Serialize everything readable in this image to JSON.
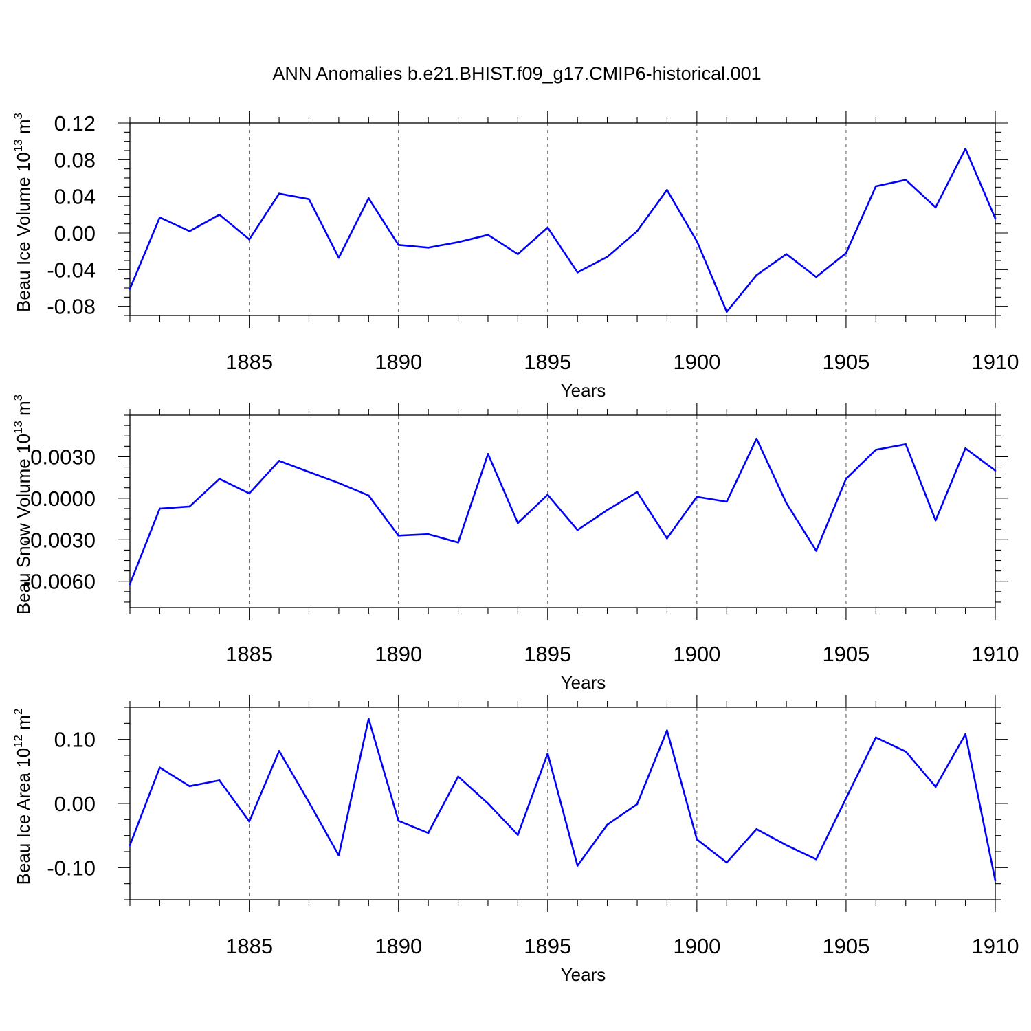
{
  "figure": {
    "title": "ANN Anomalies b.e21.BHIST.f09_g17.CMIP6-historical.001",
    "line_color": "#0000ff"
  },
  "chart_data": [
    {
      "type": "line",
      "id": "ice-volume",
      "ylabel": {
        "text": "Beau Ice Volume 10",
        "exp": "13",
        "unit": " m",
        "unit_exp": "3"
      },
      "xlabel": "Years",
      "xlim": [
        1881,
        1910
      ],
      "ylim": [
        -0.09,
        0.12
      ],
      "x_major_ticks": [
        1885,
        1890,
        1895,
        1900,
        1905,
        1910
      ],
      "x_major_labels": [
        "1885",
        "1890",
        "1895",
        "1900",
        "1905",
        "1910"
      ],
      "y_major_ticks": [
        0.12,
        0.08,
        0.04,
        0.0,
        -0.04,
        -0.08
      ],
      "y_major_labels": [
        "0.12",
        "0.08",
        "0.04",
        "0.00",
        "-0.04",
        "-0.08"
      ],
      "y_minor_step": 0.01,
      "grid": "vertical dashed at major x ticks",
      "series": [
        {
          "name": "Beau Ice Volume",
          "x": [
            1881,
            1882,
            1883,
            1884,
            1885,
            1886,
            1887,
            1888,
            1889,
            1890,
            1891,
            1892,
            1893,
            1894,
            1895,
            1896,
            1897,
            1898,
            1899,
            1900,
            1901,
            1902,
            1903,
            1904,
            1905,
            1906,
            1907,
            1908,
            1909,
            1910
          ],
          "values": [
            -0.061,
            0.017,
            0.002,
            0.02,
            -0.007,
            0.043,
            0.037,
            -0.027,
            0.038,
            -0.013,
            -0.016,
            -0.01,
            -0.002,
            -0.023,
            0.006,
            -0.043,
            -0.026,
            0.002,
            0.047,
            -0.009,
            -0.086,
            -0.046,
            -0.023,
            -0.048,
            -0.022,
            0.051,
            0.058,
            0.028,
            0.092,
            0.016
          ]
        }
      ]
    },
    {
      "type": "line",
      "id": "snow-volume",
      "ylabel": {
        "text": "Beau Snow Volume 10",
        "exp": "13",
        "unit": " m",
        "unit_exp": "3"
      },
      "xlabel": "Years",
      "xlim": [
        1881,
        1910
      ],
      "ylim": [
        -0.0079,
        0.006
      ],
      "x_major_ticks": [
        1885,
        1890,
        1895,
        1900,
        1905,
        1910
      ],
      "x_major_labels": [
        "1885",
        "1890",
        "1895",
        "1900",
        "1905",
        "1910"
      ],
      "y_major_ticks": [
        0.003,
        0.0,
        -0.003,
        -0.006
      ],
      "y_major_labels": [
        "0.0030",
        "0.0000",
        "-0.0030",
        "-0.0060"
      ],
      "y_minor_step": 0.00075,
      "grid": "vertical dashed at major x ticks",
      "series": [
        {
          "name": "Beau Snow Volume",
          "x": [
            1881,
            1882,
            1883,
            1884,
            1885,
            1886,
            1887,
            1888,
            1889,
            1890,
            1891,
            1892,
            1893,
            1894,
            1895,
            1896,
            1897,
            1898,
            1899,
            1900,
            1901,
            1902,
            1903,
            1904,
            1905,
            1906,
            1907,
            1908,
            1909,
            1910
          ],
          "values": [
            -0.0062,
            -0.00075,
            -0.0006,
            0.0014,
            0.00035,
            0.0027,
            0.0019,
            0.0011,
            0.0002,
            -0.0027,
            -0.0026,
            -0.0032,
            0.0032,
            -0.0018,
            0.00025,
            -0.0023,
            -0.00085,
            0.00045,
            -0.0029,
            0.0001,
            -0.00025,
            0.0043,
            -0.00035,
            -0.0038,
            0.0014,
            0.0035,
            0.0039,
            -0.0016,
            0.0036,
            0.002
          ]
        }
      ]
    },
    {
      "type": "line",
      "id": "ice-area",
      "ylabel": {
        "text": "Beau Ice Area 10",
        "exp": "12",
        "unit": " m",
        "unit_exp": "2"
      },
      "xlabel": "Years",
      "xlim": [
        1881,
        1910
      ],
      "ylim": [
        -0.15,
        0.15
      ],
      "x_major_ticks": [
        1885,
        1890,
        1895,
        1900,
        1905,
        1910
      ],
      "x_major_labels": [
        "1885",
        "1890",
        "1895",
        "1900",
        "1905",
        "1910"
      ],
      "y_major_ticks": [
        0.1,
        0.0,
        -0.1
      ],
      "y_major_labels": [
        "0.10",
        "0.00",
        "-0.10"
      ],
      "y_minor_step": 0.025,
      "grid": "vertical dashed at major x ticks",
      "series": [
        {
          "name": "Beau Ice Area",
          "x": [
            1881,
            1882,
            1883,
            1884,
            1885,
            1886,
            1887,
            1888,
            1889,
            1890,
            1891,
            1892,
            1893,
            1894,
            1895,
            1896,
            1897,
            1898,
            1899,
            1900,
            1901,
            1902,
            1903,
            1904,
            1905,
            1906,
            1907,
            1908,
            1909,
            1910
          ],
          "values": [
            -0.065,
            0.056,
            0.027,
            0.036,
            -0.028,
            0.082,
            0.002,
            -0.081,
            0.132,
            -0.027,
            -0.046,
            0.042,
            0.0,
            -0.049,
            0.078,
            -0.097,
            -0.033,
            -0.001,
            0.114,
            -0.056,
            -0.092,
            -0.04,
            -0.065,
            -0.087,
            0.008,
            0.103,
            0.081,
            0.026,
            0.108,
            -0.12
          ]
        }
      ]
    }
  ]
}
